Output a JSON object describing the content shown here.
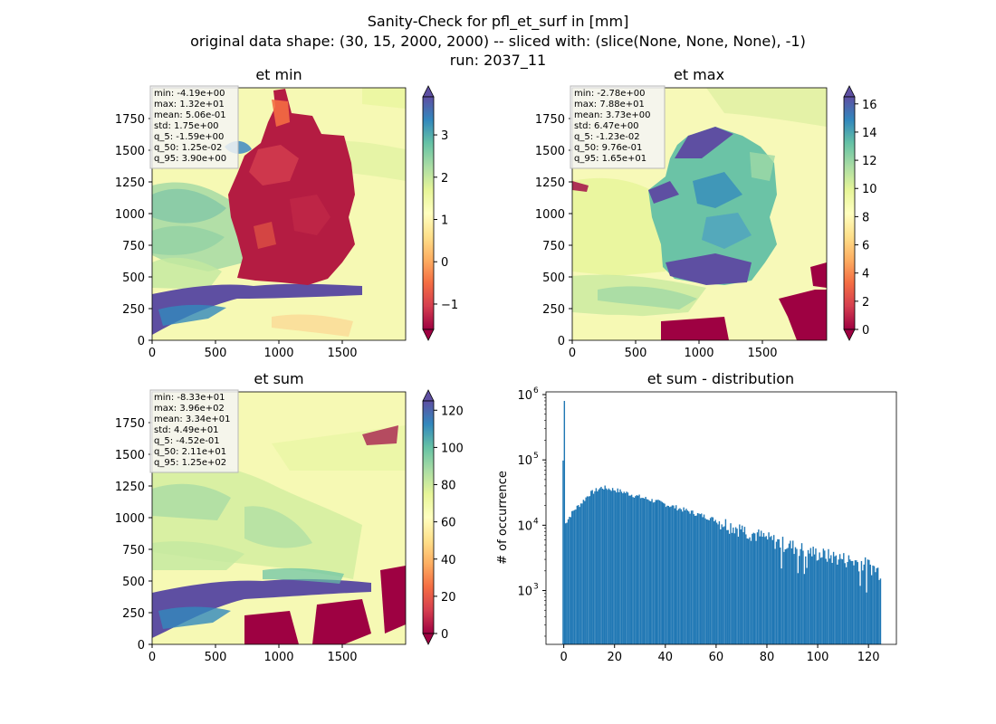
{
  "figure": {
    "title_lines": [
      "Sanity-Check for pfl_et_surf in [mm]",
      "original data shape: (30, 15, 2000, 2000) -- sliced with: (slice(None, None, None), -1)",
      "run: 2037_11"
    ]
  },
  "chart_data": [
    {
      "type": "heatmap",
      "title": "et min",
      "xlim": [
        0,
        2000
      ],
      "ylim": [
        0,
        2000
      ],
      "xticks": [
        0,
        500,
        1000,
        1500
      ],
      "yticks": [
        0,
        250,
        500,
        750,
        1000,
        1250,
        1500,
        1750
      ],
      "colormap": "Spectral",
      "colorbar": {
        "min": -1.6,
        "max": 3.9,
        "ticks": [
          -1,
          0,
          1,
          2,
          3
        ],
        "extend": "both"
      },
      "stats": [
        "min: -4.19e+00",
        "max: 1.32e+01",
        "mean: 5.06e-01",
        "std: 1.75e+00",
        "q_5: -1.59e+00",
        "q_50: 1.25e-02",
        "q_95: 3.90e+00"
      ]
    },
    {
      "type": "heatmap",
      "title": "et max",
      "xlim": [
        0,
        2000
      ],
      "ylim": [
        0,
        2000
      ],
      "xticks": [
        0,
        500,
        1000,
        1500
      ],
      "yticks": [
        0,
        250,
        500,
        750,
        1000,
        1250,
        1500,
        1750
      ],
      "colormap": "Spectral",
      "colorbar": {
        "min": 0,
        "max": 16.5,
        "ticks": [
          0,
          2,
          4,
          6,
          8,
          10,
          12,
          14,
          16
        ],
        "extend": "both"
      },
      "stats": [
        "min: -2.78e+00",
        "max: 7.88e+01",
        "mean: 3.73e+00",
        "std: 6.47e+00",
        "q_5: -1.23e-02",
        "q_50: 9.76e-01",
        "q_95: 1.65e+01"
      ]
    },
    {
      "type": "heatmap",
      "title": "et sum",
      "xlim": [
        0,
        2000
      ],
      "ylim": [
        0,
        2000
      ],
      "xticks": [
        0,
        500,
        1000,
        1500
      ],
      "yticks": [
        0,
        250,
        500,
        750,
        1000,
        1250,
        1500,
        1750
      ],
      "colormap": "Spectral",
      "colorbar": {
        "min": 0,
        "max": 125,
        "ticks": [
          0,
          20,
          40,
          60,
          80,
          100,
          120
        ],
        "extend": "both"
      },
      "stats": [
        "min: -8.33e+01",
        "max: 3.96e+02",
        "mean: 3.34e+01",
        "std: 4.49e+01",
        "q_5: -4.52e-01",
        "q_50: 2.11e+01",
        "q_95: 1.25e+02"
      ]
    },
    {
      "type": "bar",
      "title": "et sum - distribution",
      "ylabel": "# of occurrence",
      "yscale": "log",
      "xlim": [
        -7,
        131
      ],
      "ylim": [
        150,
        1100000
      ],
      "xticks": [
        0,
        20,
        40,
        60,
        80,
        100,
        120
      ],
      "yticks": [
        {
          "value": 1000,
          "label_base": "10",
          "label_exp": "3"
        },
        {
          "value": 10000,
          "label_base": "10",
          "label_exp": "4"
        },
        {
          "value": 100000,
          "label_base": "10",
          "label_exp": "5"
        },
        {
          "value": 1000000,
          "label_base": "10",
          "label_exp": "6"
        }
      ],
      "color": "#1f77b4",
      "bin_width": 0.5,
      "curve_x": [
        -0.5,
        0,
        0.5,
        1,
        2,
        4,
        7,
        10,
        15,
        20,
        25,
        30,
        35,
        40,
        50,
        60,
        70,
        80,
        90,
        100,
        110,
        120,
        125
      ],
      "curve_y": [
        12000,
        800000,
        12000,
        11000,
        13000,
        17000,
        22000,
        30000,
        38000,
        35000,
        31000,
        27000,
        24000,
        21000,
        16000,
        12000,
        8800,
        6300,
        4800,
        3700,
        3100,
        2500,
        1900
      ]
    }
  ]
}
